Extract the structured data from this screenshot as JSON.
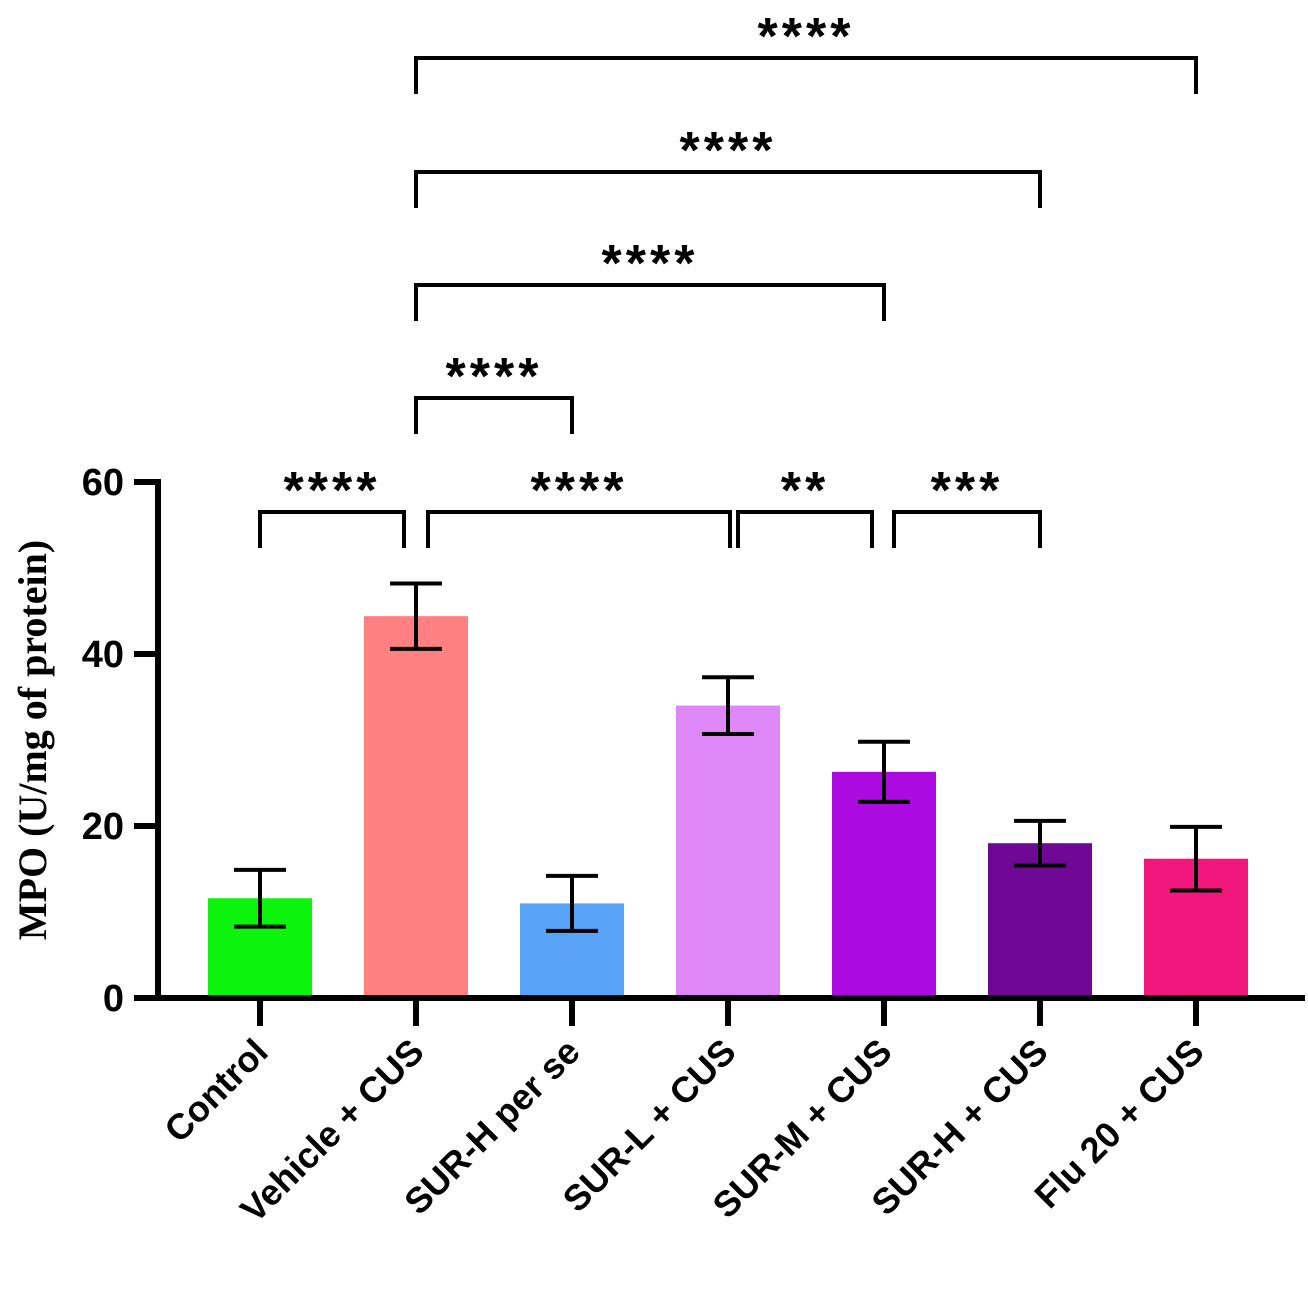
{
  "chart_data": {
    "type": "bar",
    "title": "",
    "xlabel": "",
    "ylabel": "MPO (U/mg of protein)",
    "ylim": [
      0,
      60
    ],
    "yticks": [
      "0",
      "20",
      "40",
      "60"
    ],
    "grid": false,
    "categories": [
      "Control",
      "Vehicle + CUS",
      "SUR-H per se",
      "SUR-L + CUS",
      "SUR-M + CUS",
      "SUR-H + CUS",
      "Flu 20 + CUS"
    ],
    "values": [
      11.6,
      44.4,
      11.0,
      34.0,
      26.3,
      18.0,
      16.2
    ],
    "errors": [
      3.3,
      3.8,
      3.2,
      3.3,
      3.5,
      2.6,
      3.7
    ],
    "colors": [
      "#0cf40c",
      "#ff8080",
      "#58a2f8",
      "#dd88f6",
      "#ab0be0",
      "#6e0895",
      "#f2177c"
    ],
    "comparisons": [
      {
        "from": 0,
        "to": 1,
        "label": "****"
      },
      {
        "from": 1,
        "to": 3,
        "label": "****"
      },
      {
        "from": 3,
        "to": 4,
        "label": "**"
      },
      {
        "from": 4,
        "to": 5,
        "label": "***"
      },
      {
        "from": 1,
        "to": 2,
        "label": "****"
      },
      {
        "from": 1,
        "to": 4,
        "label": "****"
      },
      {
        "from": 1,
        "to": 5,
        "label": "****"
      },
      {
        "from": 1,
        "to": 6,
        "label": "****"
      }
    ]
  }
}
